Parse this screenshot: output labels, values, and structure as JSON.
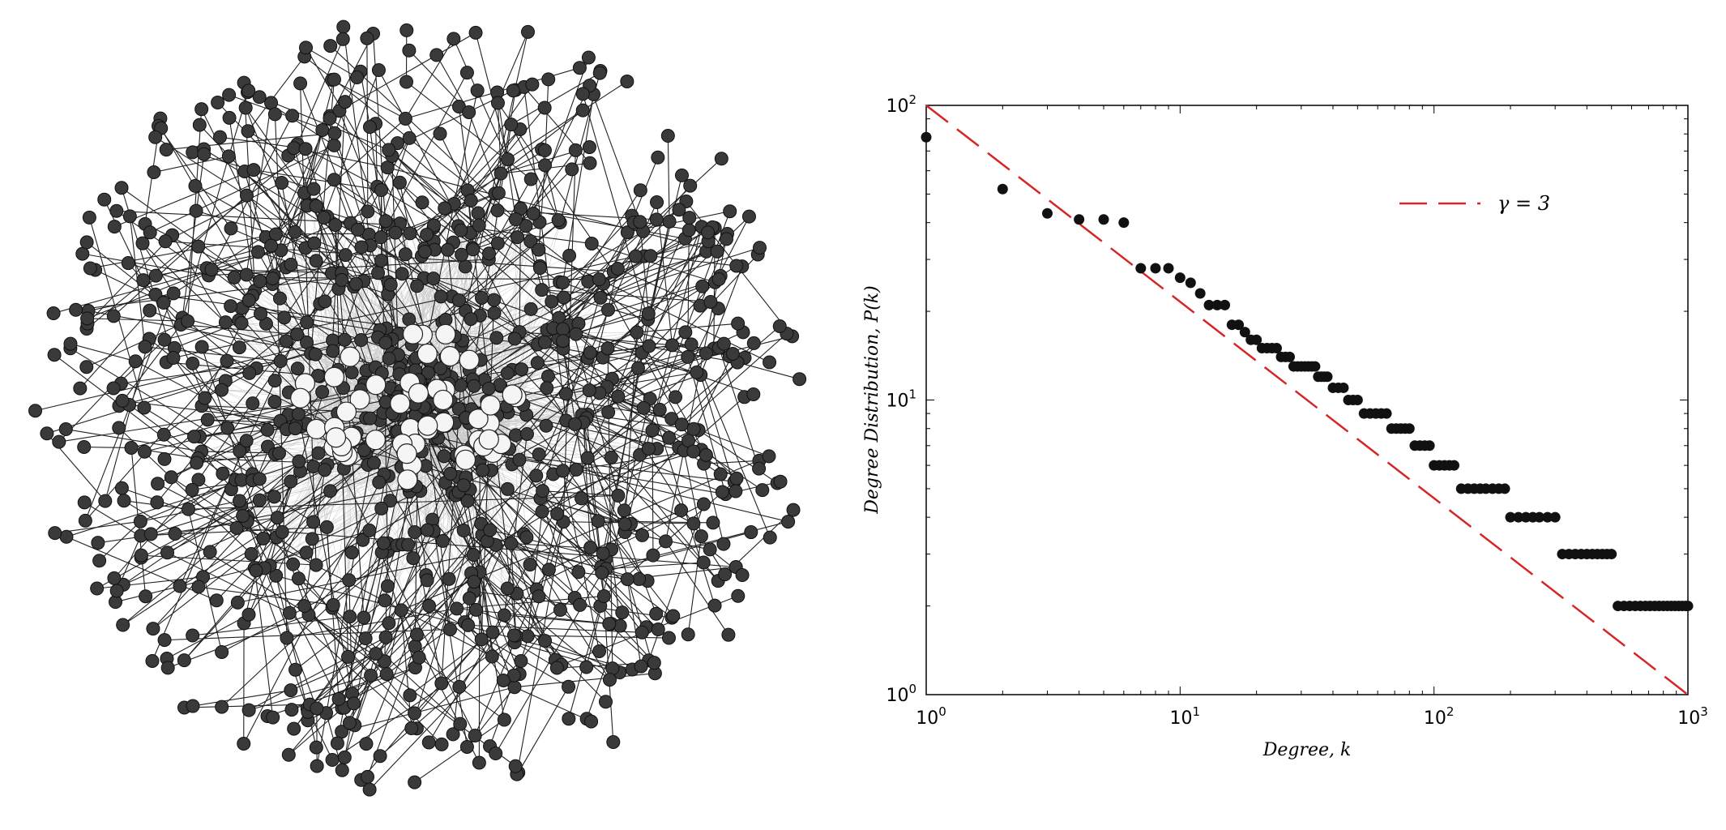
{
  "network": {
    "node_count_dark": 1000,
    "node_count_light": 50,
    "dark_node_color": "#3a3a3a",
    "light_node_color": "#f5f5f5",
    "dense_edge_color": "#999999",
    "sparse_edge_color": "#222222"
  },
  "chart_data": {
    "type": "scatter",
    "xscale": "log",
    "yscale": "log",
    "xlim": [
      1,
      1000
    ],
    "ylim": [
      1,
      100
    ],
    "xlabel": "Degree, k",
    "ylabel": "Degree Distribution, P(k)",
    "x_ticks": [
      1,
      10,
      100,
      1000
    ],
    "y_ticks": [
      1,
      10,
      100
    ],
    "x_tick_labels": [
      {
        "base": "10",
        "exp": "0"
      },
      {
        "base": "10",
        "exp": "1"
      },
      {
        "base": "10",
        "exp": "2"
      },
      {
        "base": "10",
        "exp": "3"
      }
    ],
    "y_tick_labels": [
      {
        "base": "10",
        "exp": "0"
      },
      {
        "base": "10",
        "exp": "1"
      },
      {
        "base": "10",
        "exp": "2"
      }
    ],
    "grid": false,
    "legend_position": "top-right",
    "reference_line": {
      "label": "γ = 3",
      "style": "dashed",
      "color": "#d62728",
      "points": [
        [
          1,
          100
        ],
        [
          1000,
          1
        ]
      ]
    },
    "point_color": "#111111",
    "series": [
      {
        "values_x": [
          1,
          2,
          3,
          4,
          5,
          6,
          7,
          8,
          9,
          10,
          11,
          12,
          13,
          14,
          15,
          16,
          17,
          18,
          19,
          20,
          21,
          22,
          23,
          24,
          25,
          26,
          27,
          28,
          29,
          30,
          31,
          32,
          33,
          34,
          35,
          36,
          37,
          38,
          40,
          42,
          44,
          46,
          48,
          50,
          53,
          56,
          59,
          62,
          65,
          68,
          71,
          74,
          77,
          80,
          84,
          88,
          92,
          96,
          100,
          105,
          110,
          115,
          120,
          128,
          136,
          144,
          152,
          160,
          170,
          180,
          190,
          200,
          215,
          230,
          245,
          260,
          280,
          300,
          320,
          340,
          360,
          380,
          400,
          420,
          440,
          460,
          480,
          500,
          530,
          560,
          590,
          620,
          650,
          680,
          710,
          740,
          770,
          800,
          830,
          860,
          890,
          920,
          950,
          980,
          1000
        ],
        "values_y": [
          78,
          52,
          43,
          41,
          41,
          40,
          28,
          28,
          28,
          26,
          25,
          23,
          21,
          21,
          21,
          18,
          18,
          17,
          16,
          16,
          15,
          15,
          15,
          15,
          14,
          14,
          14,
          13,
          13,
          13,
          13,
          13,
          13,
          13,
          12,
          12,
          12,
          12,
          11,
          11,
          11,
          10,
          10,
          10,
          9,
          9,
          9,
          9,
          9,
          8,
          8,
          8,
          8,
          8,
          7,
          7,
          7,
          7,
          6,
          6,
          6,
          6,
          6,
          5,
          5,
          5,
          5,
          5,
          5,
          5,
          5,
          4,
          4,
          4,
          4,
          4,
          4,
          4,
          3,
          3,
          3,
          3,
          3,
          3,
          3,
          3,
          3,
          3,
          2,
          2,
          2,
          2,
          2,
          2,
          2,
          2,
          2,
          2,
          2,
          2,
          2,
          2,
          2,
          2,
          2
        ]
      }
    ]
  }
}
